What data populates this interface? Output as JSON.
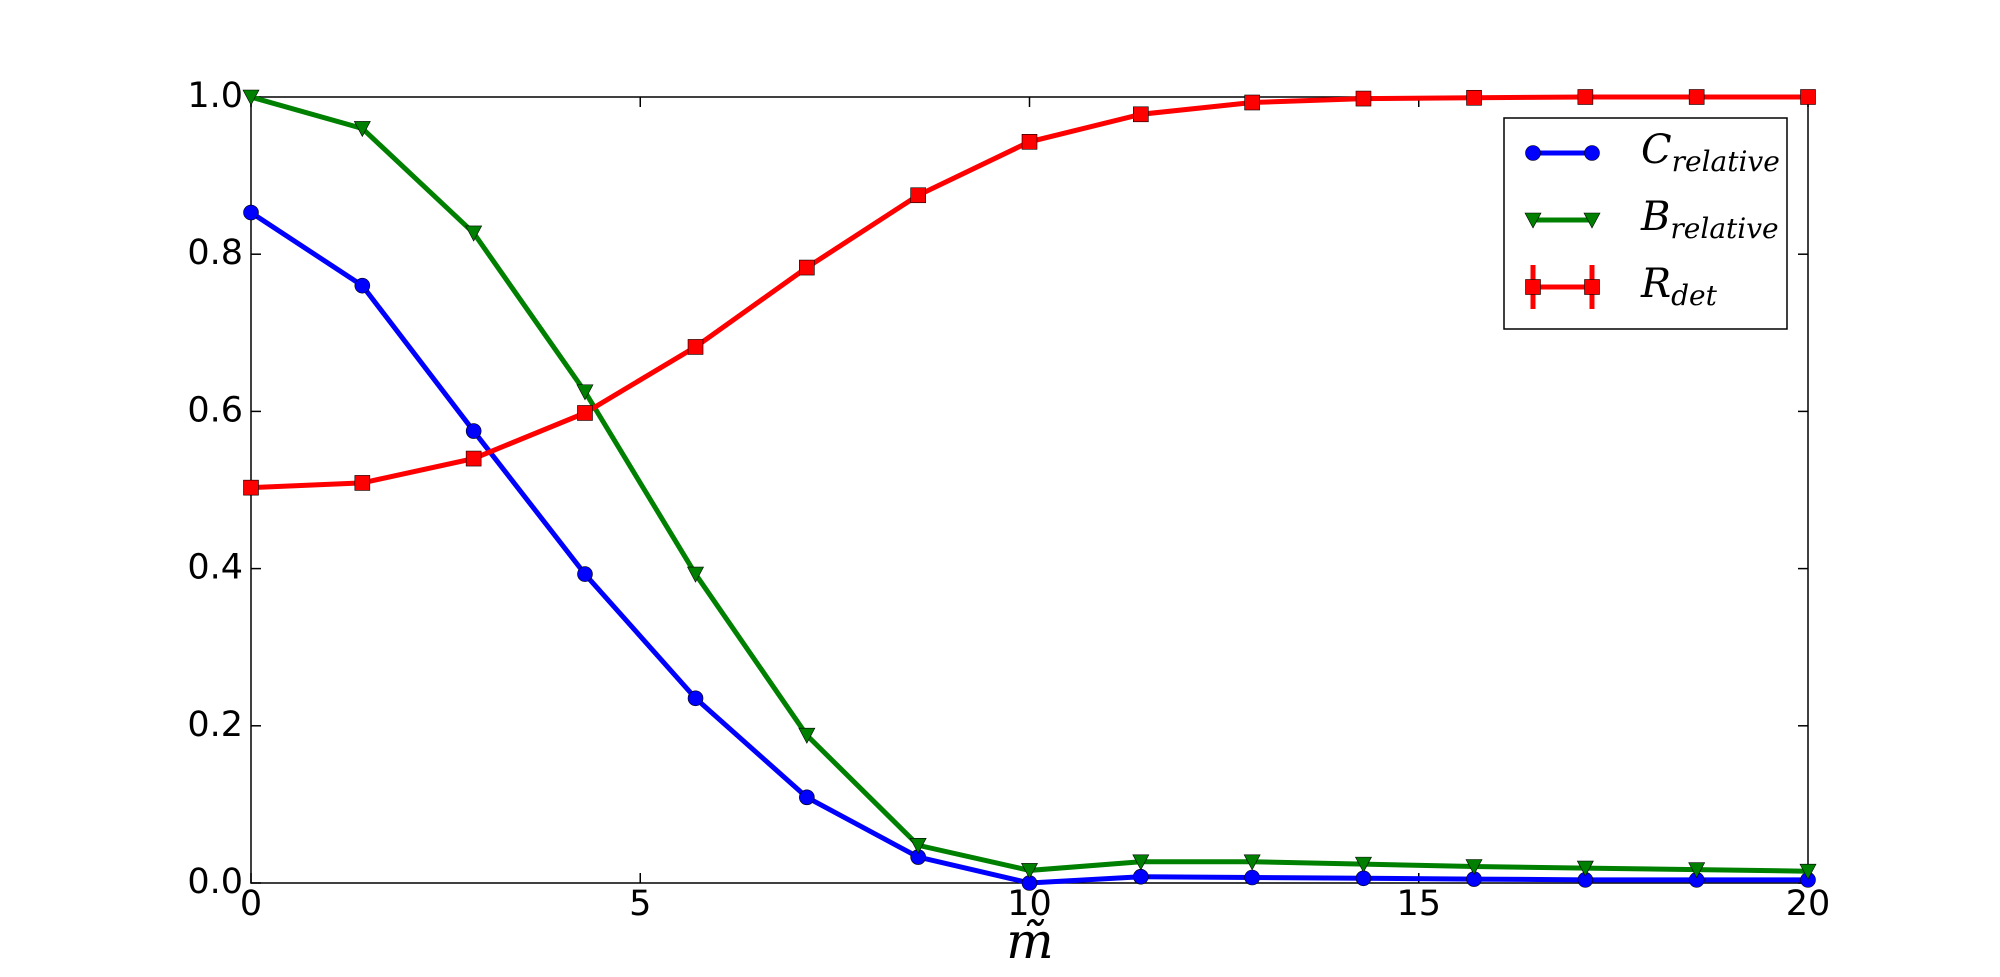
{
  "chart_data": {
    "type": "line",
    "x_label": "m̃",
    "x": [
      0,
      1.43,
      2.86,
      4.29,
      5.71,
      7.14,
      8.57,
      10,
      11.43,
      12.86,
      14.29,
      15.71,
      17.14,
      18.57,
      20
    ],
    "series": [
      {
        "name": "C",
        "name_sub": "relative",
        "color": "#0000ff",
        "marker": "circle",
        "values": [
          0.853,
          0.76,
          0.575,
          0.393,
          0.235,
          0.109,
          0.033,
          0.0,
          0.008,
          0.007,
          0.006,
          0.005,
          0.004,
          0.004,
          0.004
        ]
      },
      {
        "name": "B",
        "name_sub": "relative",
        "color": "#008000",
        "marker": "triangle-down",
        "values": [
          1.0,
          0.96,
          0.827,
          0.625,
          0.393,
          0.188,
          0.048,
          0.016,
          0.027,
          0.027,
          0.024,
          0.021,
          0.019,
          0.017,
          0.015
        ]
      },
      {
        "name": "R",
        "name_sub": "det",
        "color": "#ff0000",
        "marker": "square",
        "values": [
          0.503,
          0.509,
          0.54,
          0.598,
          0.682,
          0.783,
          0.875,
          0.943,
          0.978,
          0.993,
          0.998,
          0.999,
          1.0,
          1.0,
          1.0
        ]
      }
    ],
    "xlim": [
      0,
      20
    ],
    "xticks": [
      0,
      5,
      10,
      15,
      20
    ],
    "ylim": [
      0,
      1
    ],
    "yticks": [
      {
        "value": 0,
        "label": "0.0"
      },
      0.2,
      0.4,
      0.6,
      0.8,
      {
        "value": 1,
        "label": "1.0"
      }
    ],
    "legend": "upper right",
    "grid": false
  }
}
